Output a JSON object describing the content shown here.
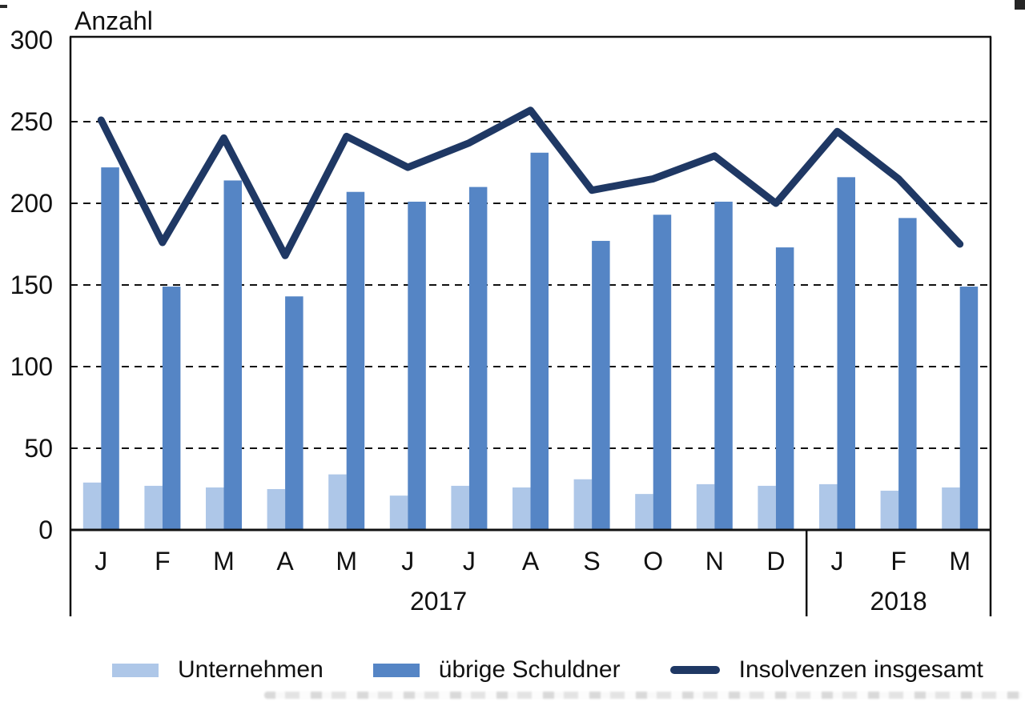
{
  "background_color": "#FFFFFF",
  "text_color": "#111111",
  "chart_data": {
    "type": "bar",
    "subtype": "grouped-bar-with-line-overlay",
    "ylabel": "Anzahl",
    "ylim": [
      0,
      300
    ],
    "yticks": [
      0,
      50,
      100,
      150,
      200,
      250,
      300
    ],
    "grid": "horizontal dashed black lines at 50..250, solid frame on top/left/right, solid x-axis",
    "legend_position": "bottom",
    "categories": [
      "J",
      "F",
      "M",
      "A",
      "M",
      "J",
      "J",
      "A",
      "S",
      "O",
      "N",
      "D",
      "J",
      "F",
      "M"
    ],
    "year_groups": [
      {
        "label": "2017",
        "span": 12
      },
      {
        "label": "2018",
        "span": 3
      }
    ],
    "series": [
      {
        "name": "Unternehmen",
        "type": "bar",
        "color": "#AEC7E8",
        "values": [
          29,
          27,
          26,
          25,
          34,
          21,
          27,
          26,
          31,
          22,
          28,
          27,
          28,
          24,
          26
        ]
      },
      {
        "name": "übrige Schuldner",
        "type": "bar",
        "color": "#5585C5",
        "values": [
          222,
          149,
          214,
          143,
          207,
          201,
          210,
          231,
          177,
          193,
          201,
          173,
          216,
          191,
          149
        ]
      },
      {
        "name": "Insolvenzen insgesamt",
        "type": "line",
        "color": "#1F3864",
        "values": [
          251,
          176,
          240,
          168,
          241,
          222,
          237,
          257,
          208,
          215,
          229,
          200,
          244,
          215,
          175
        ]
      }
    ]
  },
  "legend": {
    "items": [
      {
        "label": "Unternehmen",
        "swatch": "light-blue-bar"
      },
      {
        "label": "übrige Schuldner",
        "swatch": "medium-blue-bar"
      },
      {
        "label": "Insolvenzen insgesamt",
        "swatch": "navy-line"
      }
    ]
  }
}
